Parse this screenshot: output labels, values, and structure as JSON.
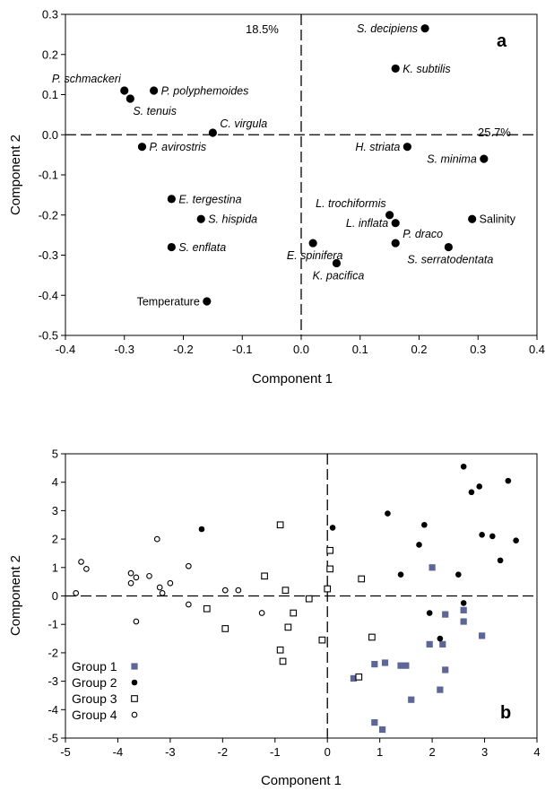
{
  "chart_data": [
    {
      "type": "scatter",
      "panel_label": "a",
      "xlabel": "Component 1",
      "ylabel": "Component 2",
      "xlim": [
        -0.4,
        0.4
      ],
      "ylim": [
        -0.5,
        0.3
      ],
      "xticks": [
        "-0.4",
        "-0.3",
        "-0.2",
        "-0.1",
        "0.0",
        "0.1",
        "0.2",
        "0.3",
        "0.4"
      ],
      "yticks": [
        "0.3",
        "0.2",
        "0.1",
        "0.0",
        "-0.1",
        "-0.2",
        "-0.3",
        "-0.4",
        "-0.5"
      ],
      "xtick_values": [
        -0.4,
        -0.3,
        -0.2,
        -0.1,
        0.0,
        0.1,
        0.2,
        0.3,
        0.4
      ],
      "ytick_values": [
        0.3,
        0.2,
        0.1,
        0.0,
        -0.1,
        -0.2,
        -0.3,
        -0.4,
        -0.5
      ],
      "y_variance_label": "18.5%",
      "x_variance_label": "25.7%",
      "points": [
        {
          "label": "S. decipiens",
          "x": 0.21,
          "y": 0.265,
          "italic": true,
          "pos": "left"
        },
        {
          "label": "K. subtilis",
          "x": 0.16,
          "y": 0.165,
          "italic": true,
          "pos": "right"
        },
        {
          "label": "P. schmackeri",
          "x": -0.3,
          "y": 0.11,
          "italic": true,
          "pos": "above-left"
        },
        {
          "label": "P. polyphemoides",
          "x": -0.25,
          "y": 0.11,
          "italic": true,
          "pos": "right"
        },
        {
          "label": "S. tenuis",
          "x": -0.29,
          "y": 0.09,
          "italic": true,
          "pos": "below-right"
        },
        {
          "label": "C. virgula",
          "x": -0.15,
          "y": 0.005,
          "italic": true,
          "pos": "above-right"
        },
        {
          "label": "P. avirostris",
          "x": -0.27,
          "y": -0.03,
          "italic": true,
          "pos": "right"
        },
        {
          "label": "H. striata",
          "x": 0.18,
          "y": -0.03,
          "italic": true,
          "pos": "left"
        },
        {
          "label": "S. minima",
          "x": 0.31,
          "y": -0.06,
          "italic": true,
          "pos": "left"
        },
        {
          "label": "E. tergestina",
          "x": -0.22,
          "y": -0.16,
          "italic": true,
          "pos": "right"
        },
        {
          "label": "S. hispida",
          "x": -0.17,
          "y": -0.21,
          "italic": true,
          "pos": "right"
        },
        {
          "label": "S. enflata",
          "x": -0.22,
          "y": -0.28,
          "italic": true,
          "pos": "right"
        },
        {
          "label": "Temperature",
          "x": -0.16,
          "y": -0.415,
          "italic": false,
          "pos": "left"
        },
        {
          "label": "L. trochiformis",
          "x": 0.15,
          "y": -0.2,
          "italic": true,
          "pos": "above-left"
        },
        {
          "label": "L. inflata",
          "x": 0.16,
          "y": -0.22,
          "italic": true,
          "pos": "left"
        },
        {
          "label": "Salinity",
          "x": 0.29,
          "y": -0.21,
          "italic": false,
          "pos": "right"
        },
        {
          "label": "P. draco",
          "x": 0.16,
          "y": -0.27,
          "italic": true,
          "pos": "above-right"
        },
        {
          "label": "E. spinifera",
          "x": 0.02,
          "y": -0.27,
          "italic": true,
          "pos": "below"
        },
        {
          "label": "S. serratodentata",
          "x": 0.25,
          "y": -0.28,
          "italic": true,
          "pos": "below"
        },
        {
          "label": "K. pacifica",
          "x": 0.06,
          "y": -0.32,
          "italic": true,
          "pos": "below"
        }
      ]
    },
    {
      "type": "scatter",
      "panel_label": "b",
      "xlabel": "Component 1",
      "ylabel": "Component 2",
      "xlim": [
        -5,
        4
      ],
      "ylim": [
        -5,
        5
      ],
      "xticks": [
        "-5",
        "-4",
        "-3",
        "-2",
        "-1",
        "0",
        "1",
        "2",
        "3",
        "4"
      ],
      "yticks": [
        "5",
        "4",
        "3",
        "2",
        "1",
        "0",
        "-1",
        "-2",
        "-3",
        "-4",
        "-5"
      ],
      "xtick_values": [
        -5,
        -4,
        -3,
        -2,
        -1,
        0,
        1,
        2,
        3,
        4
      ],
      "ytick_values": [
        5,
        4,
        3,
        2,
        1,
        0,
        -1,
        -2,
        -3,
        -4,
        -5
      ],
      "legend_position": "bottom-left",
      "series": [
        {
          "name": "Group 1",
          "marker": "filled-square",
          "color": "#5c6697",
          "points": [
            [
              2.0,
              1.0
            ],
            [
              2.25,
              -0.65
            ],
            [
              2.6,
              -0.5
            ],
            [
              2.6,
              -0.9
            ],
            [
              2.95,
              -1.4
            ],
            [
              2.2,
              -1.7
            ],
            [
              1.95,
              -1.7
            ],
            [
              0.9,
              -2.4
            ],
            [
              1.1,
              -2.35
            ],
            [
              1.4,
              -2.45
            ],
            [
              1.5,
              -2.45
            ],
            [
              0.5,
              -2.9
            ],
            [
              2.25,
              -2.6
            ],
            [
              2.15,
              -3.3
            ],
            [
              1.6,
              -3.65
            ],
            [
              0.9,
              -4.45
            ],
            [
              1.05,
              -4.7
            ]
          ]
        },
        {
          "name": "Group 2",
          "marker": "filled-circle",
          "color": "#000000",
          "points": [
            [
              2.6,
              4.55
            ],
            [
              3.45,
              4.05
            ],
            [
              2.9,
              3.85
            ],
            [
              2.75,
              3.65
            ],
            [
              1.15,
              2.9
            ],
            [
              1.85,
              2.5
            ],
            [
              0.1,
              2.4
            ],
            [
              -2.4,
              2.35
            ],
            [
              2.95,
              2.15
            ],
            [
              3.15,
              2.1
            ],
            [
              3.6,
              1.95
            ],
            [
              1.75,
              1.8
            ],
            [
              1.4,
              0.75
            ],
            [
              2.5,
              0.75
            ],
            [
              3.3,
              1.25
            ],
            [
              2.6,
              -0.25
            ],
            [
              1.95,
              -0.6
            ],
            [
              2.15,
              -1.5
            ]
          ]
        },
        {
          "name": "Group 3",
          "marker": "open-square",
          "color": "#000000",
          "points": [
            [
              -0.9,
              2.5
            ],
            [
              0.05,
              1.6
            ],
            [
              0.05,
              0.95
            ],
            [
              0.65,
              0.6
            ],
            [
              -1.2,
              0.7
            ],
            [
              -0.8,
              0.2
            ],
            [
              -0.65,
              -0.6
            ],
            [
              0.0,
              0.25
            ],
            [
              -0.35,
              -0.1
            ],
            [
              -2.3,
              -0.45
            ],
            [
              -1.95,
              -1.15
            ],
            [
              -0.75,
              -1.1
            ],
            [
              -0.1,
              -1.55
            ],
            [
              -0.9,
              -1.9
            ],
            [
              -0.85,
              -2.3
            ],
            [
              0.85,
              -1.45
            ],
            [
              0.6,
              -2.85
            ]
          ]
        },
        {
          "name": "Group 4",
          "marker": "open-circle",
          "color": "#000000",
          "points": [
            [
              -4.8,
              0.1
            ],
            [
              -4.7,
              1.2
            ],
            [
              -4.6,
              0.95
            ],
            [
              -3.75,
              0.8
            ],
            [
              -3.65,
              0.65
            ],
            [
              -3.4,
              0.7
            ],
            [
              -3.75,
              0.45
            ],
            [
              -3.2,
              0.3
            ],
            [
              -3.15,
              0.1
            ],
            [
              -3.0,
              0.45
            ],
            [
              -3.25,
              2.0
            ],
            [
              -2.65,
              1.05
            ],
            [
              -1.7,
              0.2
            ],
            [
              -1.95,
              0.2
            ],
            [
              -2.65,
              -0.3
            ],
            [
              -3.65,
              -0.9
            ],
            [
              -1.25,
              -0.6
            ]
          ]
        }
      ]
    }
  ]
}
